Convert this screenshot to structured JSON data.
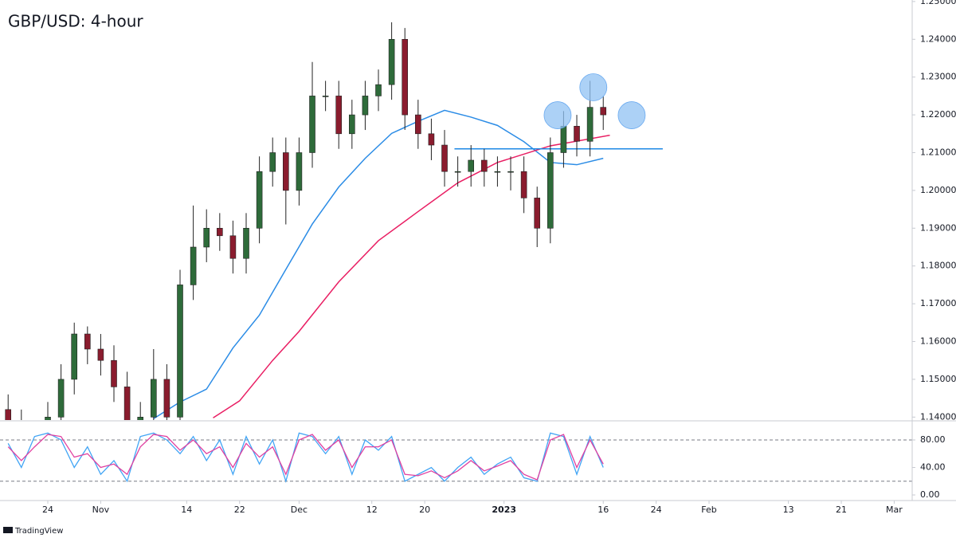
{
  "chart_data": [
    {
      "type": "candlestick",
      "title": "GBP/USD: 4-hour",
      "x": [
        -6,
        -4,
        -2,
        0,
        2,
        4,
        6,
        8,
        10,
        12,
        14,
        16,
        18,
        20,
        22,
        24,
        26,
        28,
        30,
        32,
        34,
        36,
        38,
        40,
        42,
        44,
        46,
        48,
        50,
        52,
        54,
        56,
        58,
        60,
        62,
        64,
        66,
        68,
        70,
        72,
        74,
        76,
        78,
        80,
        82,
        84
      ],
      "open": [
        1.142,
        1.138,
        1.13,
        1.135,
        1.14,
        1.15,
        1.162,
        1.158,
        1.155,
        1.148,
        1.138,
        1.14,
        1.15,
        1.14,
        1.175,
        1.185,
        1.19,
        1.188,
        1.182,
        1.19,
        1.205,
        1.21,
        1.2,
        1.21,
        1.225,
        1.225,
        1.215,
        1.22,
        1.225,
        1.228,
        1.24,
        1.22,
        1.215,
        1.212,
        1.205,
        1.205,
        1.208,
        1.205,
        1.205,
        1.205,
        1.198,
        1.19,
        1.21,
        1.217,
        1.213,
        1.222
      ],
      "high": [
        1.146,
        1.142,
        1.139,
        1.144,
        1.154,
        1.165,
        1.164,
        1.162,
        1.159,
        1.152,
        1.144,
        1.158,
        1.154,
        1.179,
        1.196,
        1.195,
        1.194,
        1.192,
        1.194,
        1.209,
        1.214,
        1.214,
        1.214,
        1.234,
        1.229,
        1.229,
        1.224,
        1.229,
        1.232,
        1.2445,
        1.243,
        1.224,
        1.219,
        1.216,
        1.209,
        1.212,
        1.211,
        1.209,
        1.209,
        1.209,
        1.201,
        1.214,
        1.221,
        1.22,
        1.229,
        1.225
      ],
      "low": [
        1.134,
        1.126,
        1.126,
        1.131,
        1.136,
        1.146,
        1.154,
        1.151,
        1.144,
        1.134,
        1.134,
        1.136,
        1.136,
        1.138,
        1.171,
        1.181,
        1.184,
        1.178,
        1.178,
        1.186,
        1.201,
        1.191,
        1.196,
        1.206,
        1.221,
        1.211,
        1.211,
        1.216,
        1.221,
        1.224,
        1.216,
        1.211,
        1.208,
        1.201,
        1.201,
        1.201,
        1.201,
        1.201,
        1.2,
        1.194,
        1.185,
        1.186,
        1.206,
        1.209,
        1.209,
        1.216
      ],
      "close": [
        1.138,
        1.13,
        1.135,
        1.14,
        1.15,
        1.162,
        1.158,
        1.155,
        1.148,
        1.138,
        1.14,
        1.15,
        1.14,
        1.175,
        1.185,
        1.19,
        1.188,
        1.182,
        1.19,
        1.205,
        1.21,
        1.2,
        1.21,
        1.225,
        1.225,
        1.215,
        1.22,
        1.225,
        1.228,
        1.24,
        1.22,
        1.215,
        1.212,
        1.205,
        1.205,
        1.208,
        1.205,
        1.205,
        1.205,
        1.198,
        1.19,
        1.21,
        1.217,
        1.213,
        1.222,
        1.22
      ],
      "up_color": "#2e6b3a",
      "down_color": "#8a1c2e",
      "moving_averages": [
        {
          "color": "#2b8ce6",
          "x": [
            16,
            20,
            24,
            28,
            32,
            36,
            40,
            44,
            48,
            52,
            56,
            60,
            64,
            68,
            72,
            76,
            80,
            84
          ],
          "values": [
            1.1396,
            1.144,
            1.1474,
            1.1583,
            1.167,
            1.1791,
            1.1911,
            1.2009,
            1.2085,
            1.2151,
            1.2183,
            1.2212,
            1.2194,
            1.2172,
            1.2129,
            1.2074,
            1.2068,
            1.2085
          ]
        },
        {
          "color": "#e91e63",
          "x": [
            25,
            29,
            34,
            38,
            44,
            50,
            56,
            62,
            68,
            76,
            85
          ],
          "values": [
            1.1398,
            1.1443,
            1.155,
            1.1627,
            1.1758,
            1.1867,
            1.1944,
            1.202,
            1.2074,
            1.2118,
            1.2146
          ]
        }
      ],
      "level": {
        "value": 1.211,
        "x": [
          61.5,
          93
        ],
        "color": "#1e88e5"
      },
      "circles": [
        {
          "x": 77.1,
          "y": 1.2199
        },
        {
          "x": 82.5,
          "y": 1.2273
        },
        {
          "x": 88.3,
          "y": 1.2199
        }
      ],
      "circle_color": "#90c2f3",
      "xlim": [
        -7.23,
        130.72
      ],
      "ylim": [
        1.1369,
        1.2504
      ],
      "xticks": [
        {
          "value": 0,
          "label": "24"
        },
        {
          "value": 8,
          "label": "Nov"
        },
        {
          "value": 21,
          "label": "14"
        },
        {
          "value": 29,
          "label": "22"
        },
        {
          "value": 38,
          "label": "Dec"
        },
        {
          "value": 49,
          "label": "12"
        },
        {
          "value": 57,
          "label": "20"
        },
        {
          "value": 69,
          "label": "2023"
        },
        {
          "value": 84,
          "label": "16"
        },
        {
          "value": 92,
          "label": "24"
        },
        {
          "value": 100,
          "label": "Feb"
        },
        {
          "value": 112,
          "label": "13"
        },
        {
          "value": 120,
          "label": "21"
        },
        {
          "value": 128,
          "label": "Mar"
        }
      ],
      "yticks": [
        {
          "value": 1.14,
          "label": "1.14000"
        },
        {
          "value": 1.15,
          "label": "1.15000"
        },
        {
          "value": 1.16,
          "label": "1.16000"
        },
        {
          "value": 1.17,
          "label": "1.17000"
        },
        {
          "value": 1.18,
          "label": "1.18000"
        },
        {
          "value": 1.19,
          "label": "1.19000"
        },
        {
          "value": 1.2,
          "label": "1.20000"
        },
        {
          "value": 1.21,
          "label": "1.21000"
        },
        {
          "value": 1.22,
          "label": "1.22000"
        },
        {
          "value": 1.23,
          "label": "1.23000"
        },
        {
          "value": 1.24,
          "label": "1.24000"
        },
        {
          "value": 1.25,
          "label": "1.25000"
        }
      ]
    },
    {
      "type": "line",
      "series": [
        {
          "color": "#42a5f5",
          "values": [
            75,
            40,
            85,
            90,
            80,
            40,
            70,
            30,
            50,
            20,
            85,
            90,
            80,
            60,
            85,
            50,
            80,
            30,
            85,
            45,
            80,
            20,
            90,
            85,
            60,
            85,
            30,
            80,
            65,
            85,
            20,
            30,
            40,
            20,
            40,
            55,
            30,
            45,
            55,
            25,
            20,
            90,
            85,
            30,
            85,
            40
          ]
        },
        {
          "color": "#e040a0",
          "values": [
            70,
            50,
            70,
            88,
            85,
            55,
            60,
            40,
            45,
            30,
            70,
            88,
            85,
            65,
            80,
            60,
            70,
            40,
            75,
            55,
            70,
            30,
            80,
            88,
            65,
            80,
            40,
            70,
            70,
            80,
            30,
            28,
            35,
            25,
            35,
            50,
            35,
            42,
            50,
            30,
            22,
            80,
            88,
            40,
            80,
            45
          ]
        }
      ],
      "levels": [
        80,
        20
      ],
      "ylim": [
        -8.1,
        96.2
      ],
      "yticks": [
        {
          "value": 0,
          "label": "0.00"
        },
        {
          "value": 40,
          "label": "40.00"
        },
        {
          "value": 80,
          "label": "80.00"
        }
      ]
    }
  ],
  "footer": "TradingView"
}
